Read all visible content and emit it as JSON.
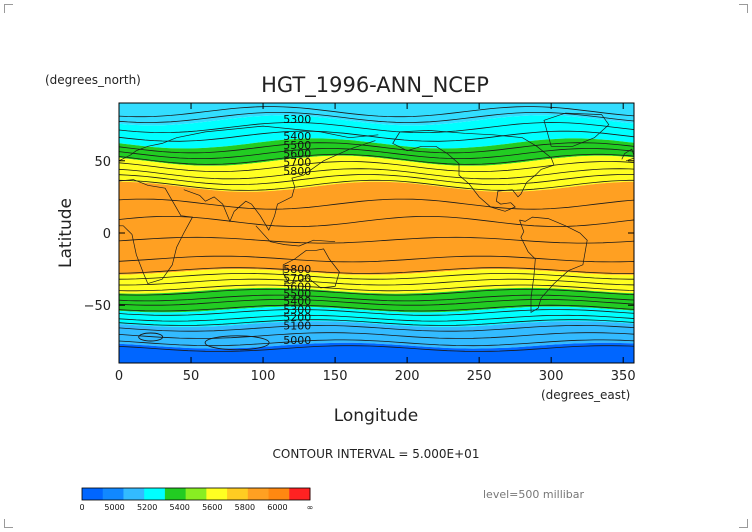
{
  "chart_data": {
    "type": "heatmap",
    "title": "HGT_1996-ANN_NCEP",
    "xlabel": "Longitude",
    "ylabel": "Latitude",
    "x_unit_label": "(degrees_east)",
    "y_unit_label": "(degrees_north)",
    "xlim": [
      0,
      357.5
    ],
    "ylim": [
      -90,
      90
    ],
    "x_ticks": [
      0,
      50,
      100,
      150,
      200,
      250,
      300,
      350
    ],
    "y_ticks": [
      50,
      0,
      -50
    ],
    "x_tick_labels": [
      "0",
      "50",
      "100",
      "150",
      "200",
      "250",
      "300",
      "350"
    ],
    "y_tick_labels": [
      "50",
      "0",
      "−50"
    ],
    "grid": false,
    "contour_interval_label": "CONTOUR INTERVAL = 5.000E+01",
    "level_label": "level=500 millibar",
    "contour_labels_north": [
      "5300",
      "5400",
      "5500",
      "5600",
      "5700",
      "5800"
    ],
    "contour_labels_south": [
      "5800",
      "5700",
      "5600",
      "5500",
      "5400",
      "5300",
      "5200",
      "5100",
      "5000"
    ],
    "bands": [
      {
        "lat_min": 78,
        "lat_max": 90,
        "color": "#33ddff",
        "level_min": 5200,
        "level_max": 5300
      },
      {
        "lat_min": 62,
        "lat_max": 78,
        "color": "#00ffff",
        "level_min": 5300,
        "level_max": 5400
      },
      {
        "lat_min": 50,
        "lat_max": 62,
        "color": "#22cc22",
        "level_min": 5400,
        "level_max": 5600
      },
      {
        "lat_min": 32,
        "lat_max": 50,
        "color": "#ffff22",
        "level_min": 5600,
        "level_max": 5800
      },
      {
        "lat_min": -27,
        "lat_max": 32,
        "color": "#ffa022",
        "level_min": 5800,
        "level_max": 6000
      },
      {
        "lat_min": -40,
        "lat_max": -27,
        "color": "#ffff22",
        "level_min": 5600,
        "level_max": 5800
      },
      {
        "lat_min": -53,
        "lat_max": -40,
        "color": "#22cc22",
        "level_min": 5400,
        "level_max": 5600
      },
      {
        "lat_min": -63,
        "lat_max": -53,
        "color": "#00ffff",
        "level_min": 5300,
        "level_max": 5400
      },
      {
        "lat_min": -78,
        "lat_max": -63,
        "color": "#33bbff",
        "level_min": 5100,
        "level_max": 5300
      },
      {
        "lat_min": -90,
        "lat_max": -78,
        "color": "#0066ff",
        "level_min": 0,
        "level_max": 5100
      }
    ],
    "colorbar": {
      "colors": [
        "#0066ff",
        "#1188ff",
        "#33bbff",
        "#00ffff",
        "#22cc22",
        "#88ee22",
        "#ffff22",
        "#ffcc22",
        "#ffa022",
        "#ff8811",
        "#ff2222"
      ],
      "tick_labels": [
        "0",
        "5000",
        "5200",
        "5400",
        "5600",
        "5800",
        "6000",
        "∞"
      ]
    }
  }
}
